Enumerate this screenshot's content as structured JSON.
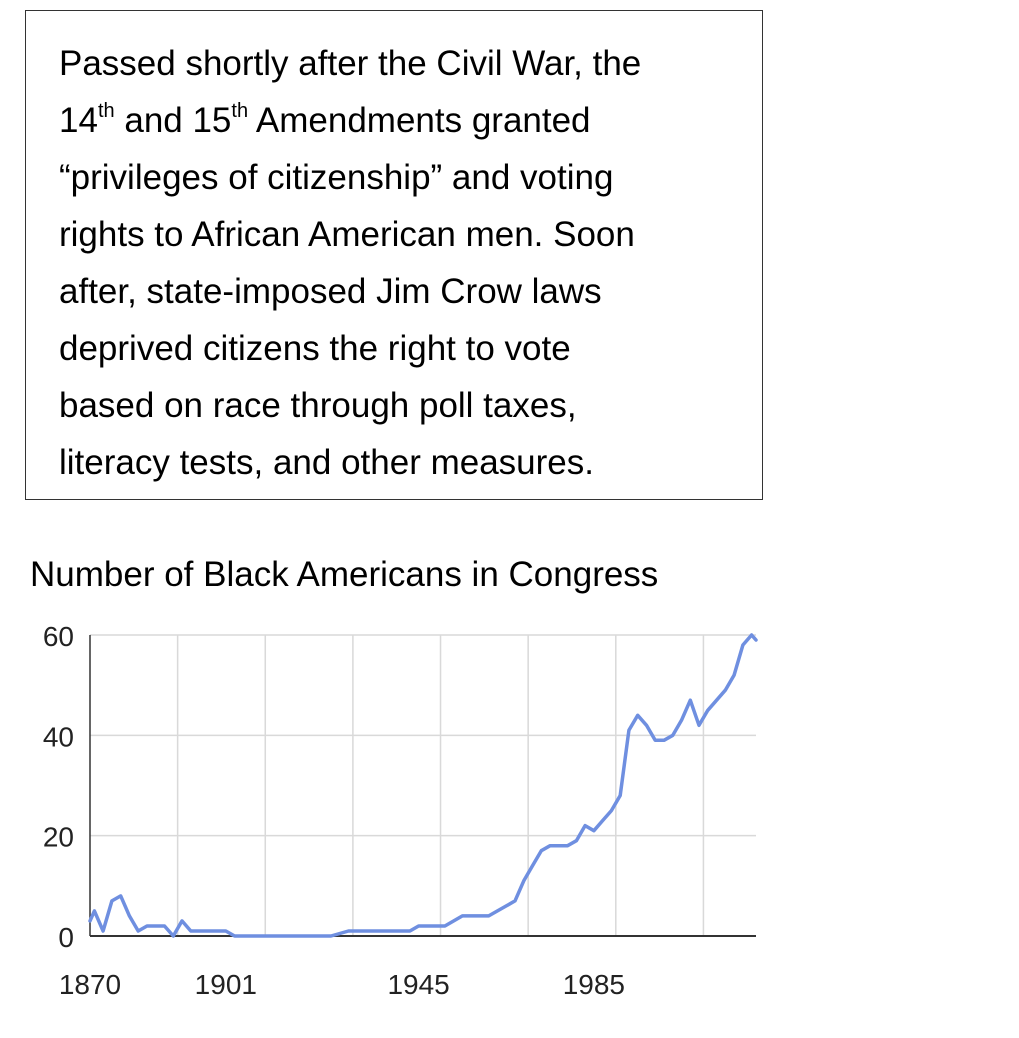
{
  "text_box": {
    "line1": "Passed shortly after the Civil War, the",
    "line2_pre": "14",
    "line2_sup1": "th",
    "line2_mid": " and 15",
    "line2_sup2": "th",
    "line2_post": " Amendments granted",
    "line3": "“privileges of citizenship” and voting",
    "line4": "rights to African American men.  Soon",
    "line5": "after, state-imposed Jim Crow laws",
    "line6": "deprived citizens the right to vote",
    "line7": "based on race through poll taxes,",
    "line8": "literacy tests, and other measures."
  },
  "chart_data": {
    "type": "line",
    "title": "Number of Black Americans in Congress",
    "xlabel": "",
    "ylabel": "",
    "xlim": [
      1870,
      2022
    ],
    "ylim": [
      0,
      60
    ],
    "x_tick_labels": [
      "1870",
      "1901",
      "1945",
      "1985"
    ],
    "x_tick_values": [
      1870,
      1901,
      1945,
      1985
    ],
    "y_ticks": [
      0,
      20,
      40,
      60
    ],
    "grid": true,
    "line_color": "#6f8fe0",
    "series": [
      {
        "name": "",
        "x": [
          1870,
          1871,
          1873,
          1875,
          1877,
          1879,
          1881,
          1883,
          1885,
          1887,
          1889,
          1891,
          1893,
          1895,
          1897,
          1899,
          1901,
          1903,
          1905,
          1909,
          1913,
          1917,
          1921,
          1925,
          1929,
          1931,
          1935,
          1939,
          1943,
          1945,
          1947,
          1951,
          1955,
          1957,
          1961,
          1965,
          1967,
          1969,
          1971,
          1973,
          1975,
          1979,
          1981,
          1983,
          1985,
          1987,
          1989,
          1991,
          1993,
          1995,
          1997,
          1999,
          2001,
          2003,
          2005,
          2007,
          2009,
          2011,
          2013,
          2015,
          2017,
          2019,
          2021,
          2022
        ],
        "y": [
          3,
          5,
          1,
          7,
          8,
          4,
          1,
          2,
          2,
          2,
          0,
          3,
          1,
          1,
          1,
          1,
          1,
          0,
          0,
          0,
          0,
          0,
          0,
          0,
          1,
          1,
          1,
          1,
          1,
          2,
          2,
          2,
          4,
          4,
          4,
          6,
          7,
          11,
          14,
          17,
          18,
          18,
          19,
          22,
          21,
          23,
          25,
          28,
          41,
          44,
          42,
          39,
          39,
          40,
          43,
          47,
          42,
          45,
          47,
          49,
          52,
          58,
          60,
          59
        ]
      }
    ]
  }
}
